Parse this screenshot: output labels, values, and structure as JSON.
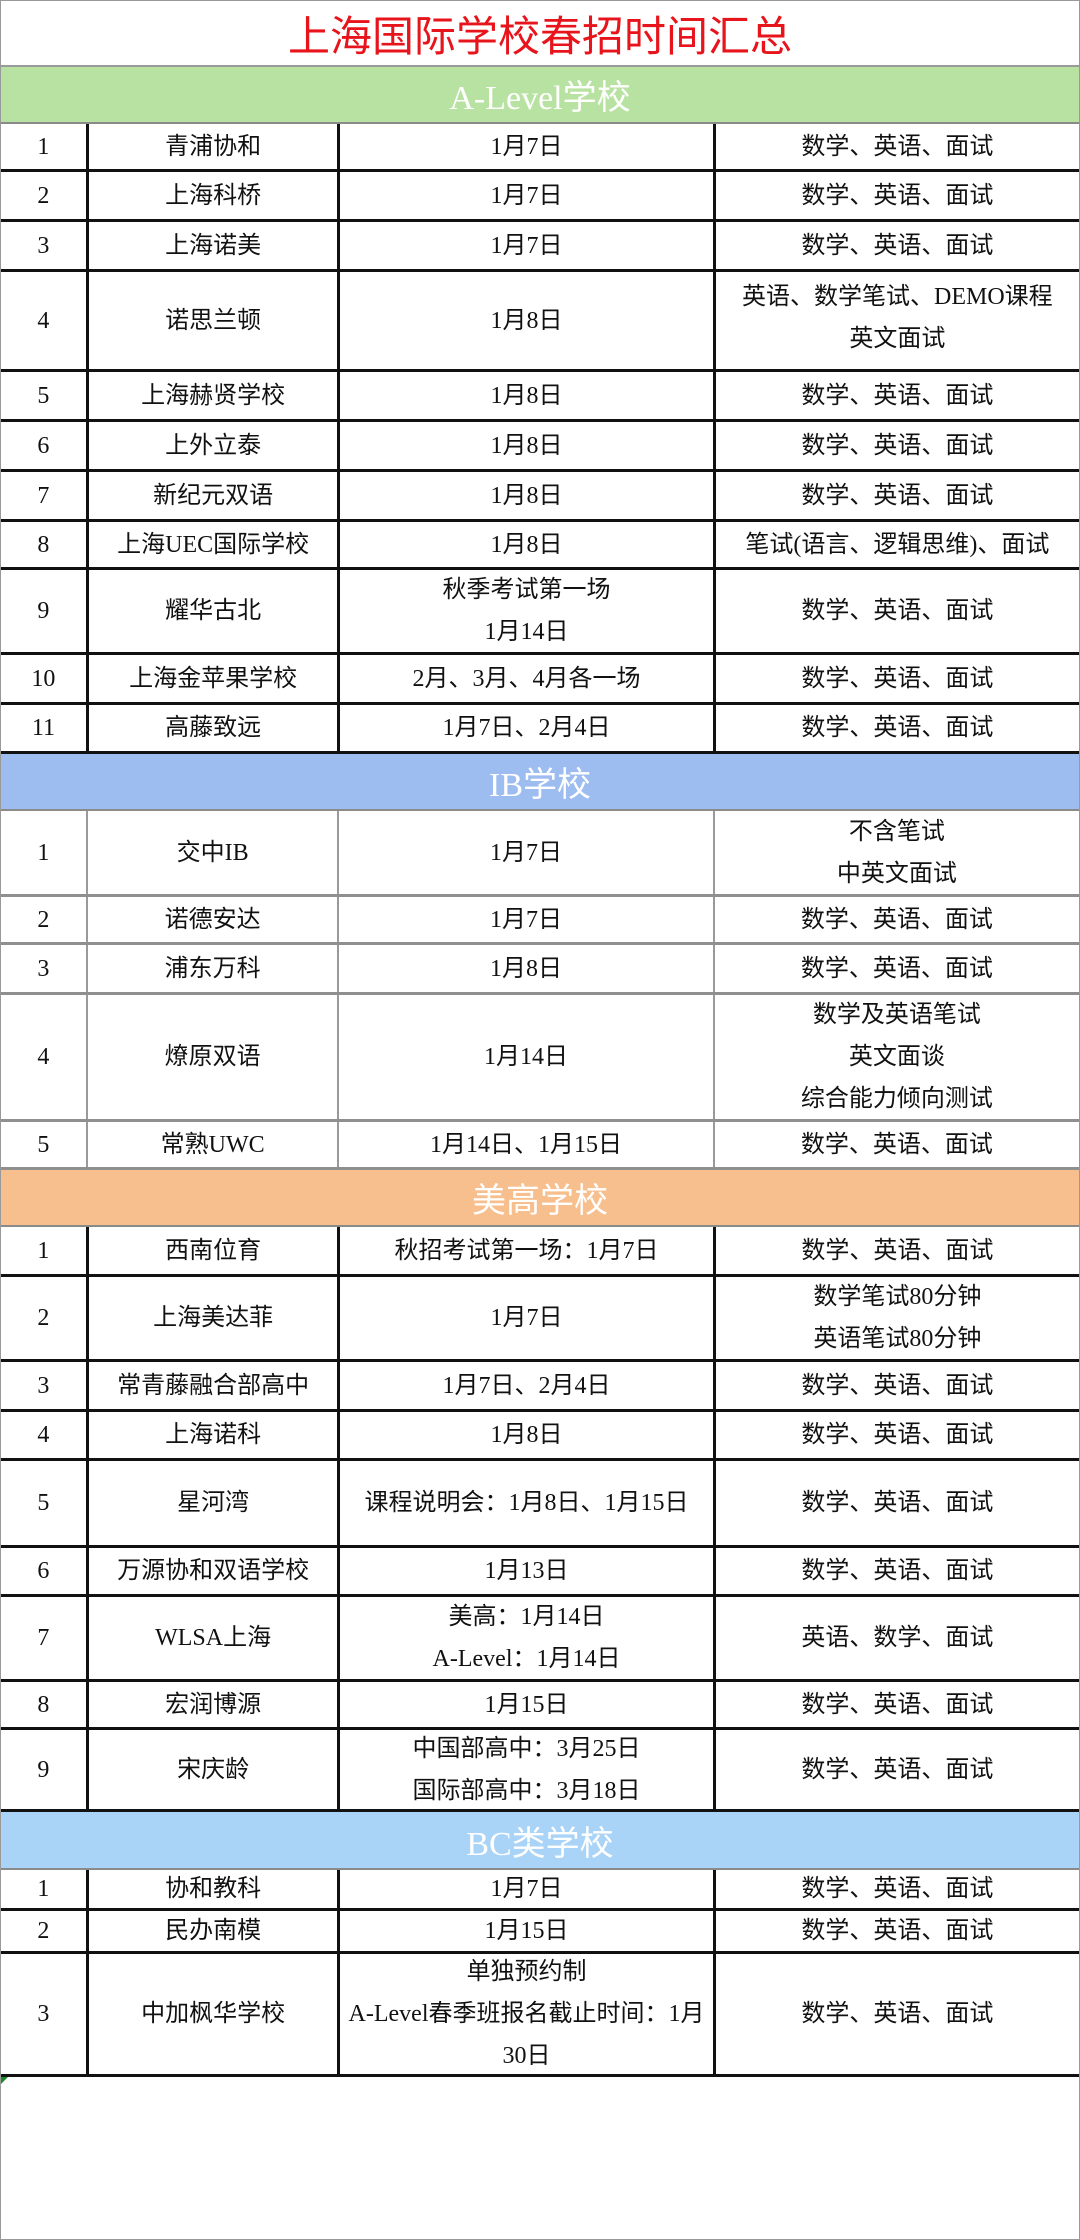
{
  "title": "上海国际学校春招时间汇总",
  "sections": [
    {
      "heading": "A-Level学校",
      "color": "#b8e2a2",
      "border": "black",
      "rows": [
        {
          "no": "1",
          "school": "青浦协和",
          "date": "1月7日",
          "content": "数学、英语、面试"
        },
        {
          "no": "2",
          "school": "上海科桥",
          "date": "1月7日",
          "content": "数学、英语、面试"
        },
        {
          "no": "3",
          "school": "上海诺美",
          "date": "1月7日",
          "content": "数学、英语、面试"
        },
        {
          "no": "4",
          "school": "诺思兰顿",
          "date": "1月8日",
          "content": "英语、数学笔试、DEMO课程\n英文面试"
        },
        {
          "no": "5",
          "school": "上海赫贤学校",
          "date": "1月8日",
          "content": "数学、英语、面试"
        },
        {
          "no": "6",
          "school": "上外立泰",
          "date": "1月8日",
          "content": "数学、英语、面试"
        },
        {
          "no": "7",
          "school": "新纪元双语",
          "date": "1月8日",
          "content": "数学、英语、面试"
        },
        {
          "no": "8",
          "school": "上海UEC国际学校",
          "date": "1月8日",
          "content": "笔试(语言、逻辑思维)、面试"
        },
        {
          "no": "9",
          "school": "耀华古北",
          "date": "秋季考试第一场\n1月14日",
          "content": "数学、英语、面试"
        },
        {
          "no": "10",
          "school": "上海金苹果学校",
          "date": "2月、3月、4月各一场",
          "content": "数学、英语、面试"
        },
        {
          "no": "11",
          "school": "高藤致远",
          "date": "1月7日、2月4日",
          "content": "数学、英语、面试"
        }
      ]
    },
    {
      "heading": "IB学校",
      "color": "#9dbcf0",
      "border": "gray",
      "rows": [
        {
          "no": "1",
          "school": "交中IB",
          "date": "1月7日",
          "content": "不含笔试\n中英文面试"
        },
        {
          "no": "2",
          "school": "诺德安达",
          "date": "1月7日",
          "content": "数学、英语、面试"
        },
        {
          "no": "3",
          "school": "浦东万科",
          "date": "1月8日",
          "content": "数学、英语、面试"
        },
        {
          "no": "4",
          "school": "燎原双语",
          "date": "1月14日",
          "content": "数学及英语笔试\n英文面谈\n综合能力倾向测试"
        },
        {
          "no": "5",
          "school": "常熟UWC",
          "date": "1月14日、1月15日",
          "content": "数学、英语、面试"
        }
      ]
    },
    {
      "heading": "美高学校",
      "color": "#f8bf8e",
      "border": "black",
      "rows": [
        {
          "no": "1",
          "school": "西南位育",
          "date": "秋招考试第一场：1月7日",
          "content": "数学、英语、面试"
        },
        {
          "no": "2",
          "school": "上海美达菲",
          "date": "1月7日",
          "content": "数学笔试80分钟\n英语笔试80分钟"
        },
        {
          "no": "3",
          "school": "常青藤融合部高中",
          "date": "1月7日、2月4日",
          "content": "数学、英语、面试"
        },
        {
          "no": "4",
          "school": "上海诺科",
          "date": "1月8日",
          "content": "数学、英语、面试"
        },
        {
          "no": "5",
          "school": "星河湾",
          "date": "课程说明会：1月8日、1月15日",
          "content": "数学、英语、面试"
        },
        {
          "no": "6",
          "school": "万源协和双语学校",
          "date": "1月13日",
          "content": "数学、英语、面试"
        },
        {
          "no": "7",
          "school": "WLSA上海",
          "date": "美高：1月14日\nA-Level：1月14日",
          "content": "英语、数学、面试"
        },
        {
          "no": "8",
          "school": "宏润博源",
          "date": "1月15日",
          "content": "数学、英语、面试"
        },
        {
          "no": "9",
          "school": "宋庆龄",
          "date": "中国部高中：3月25日\n国际部高中：3月18日",
          "content": "数学、英语、面试"
        }
      ]
    },
    {
      "heading": "BC类学校",
      "color": "#a9d3f7",
      "border": "black",
      "rows": [
        {
          "no": "1",
          "school": "协和教科",
          "date": "1月7日",
          "content": "数学、英语、面试"
        },
        {
          "no": "2",
          "school": "民办南模",
          "date": "1月15日",
          "content": "数学、英语、面试"
        },
        {
          "no": "3",
          "school": "中加枫华学校",
          "date": "单独预约制\nA-Level春季班报名截止时间：1月30日",
          "content": "数学、英语、面试"
        }
      ]
    }
  ]
}
